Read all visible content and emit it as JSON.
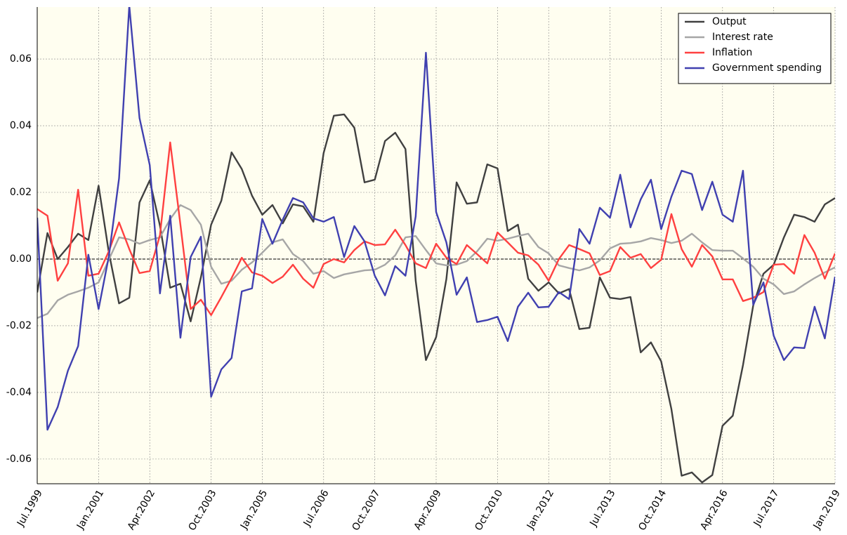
{
  "chart_data": {
    "type": "line",
    "categories": [
      "Jul.1999",
      null,
      null,
      null,
      null,
      null,
      "Jan.2001",
      null,
      null,
      null,
      null,
      "Apr.2002",
      null,
      null,
      null,
      null,
      null,
      "Oct.2003",
      null,
      null,
      null,
      null,
      "Jan.2005",
      null,
      null,
      null,
      null,
      null,
      "Jul.2006",
      null,
      null,
      null,
      null,
      "Oct.2007",
      null,
      null,
      null,
      null,
      null,
      "Apr.2009",
      null,
      null,
      null,
      null,
      null,
      "Oct.2010",
      null,
      null,
      null,
      null,
      "Jan.2012",
      null,
      null,
      null,
      null,
      null,
      "Jul.2013",
      null,
      null,
      null,
      null,
      "Oct.2014",
      null,
      null,
      null,
      null,
      null,
      "Apr.2016",
      null,
      null,
      null,
      null,
      "Jul.2017",
      null,
      null,
      null,
      null,
      null,
      "Jan.2019"
    ],
    "series": [
      {
        "name": "Output",
        "color": "#404040",
        "values": [
          -0.01,
          0.0078,
          0.0,
          0.0036,
          0.0076,
          0.0057,
          0.022,
          0.002,
          -0.0133,
          -0.0116,
          0.017,
          0.0236,
          0.01,
          -0.0086,
          -0.0074,
          -0.0187,
          -0.0055,
          0.0103,
          0.0175,
          0.032,
          0.027,
          0.019,
          0.0133,
          0.0162,
          0.0107,
          0.0164,
          0.0158,
          0.0112,
          0.0318,
          0.043,
          0.0434,
          0.0394,
          0.023,
          0.0238,
          0.0354,
          0.0379,
          0.033,
          -0.0065,
          -0.0303,
          -0.0234,
          -0.006,
          0.023,
          0.0166,
          0.017,
          0.0284,
          0.0272,
          0.0084,
          0.0103,
          -0.0059,
          -0.0095,
          -0.007,
          -0.0103,
          -0.009,
          -0.021,
          -0.0206,
          -0.0055,
          -0.0116,
          -0.012,
          -0.0114,
          -0.028,
          -0.025,
          -0.0307,
          -0.045,
          -0.065,
          -0.064,
          -0.067,
          -0.0648,
          -0.05,
          -0.047,
          -0.0318,
          -0.0139,
          -0.0044,
          -0.0017,
          0.0065,
          0.0133,
          0.0126,
          0.0112,
          0.0164,
          0.0183
        ]
      },
      {
        "name": "Interest rate",
        "color": "#a6a6a6",
        "values": [
          -0.0177,
          -0.0164,
          -0.0124,
          -0.0107,
          -0.0097,
          -0.0086,
          -0.007,
          -0.0002,
          0.0065,
          0.0059,
          0.0046,
          0.0057,
          0.0065,
          0.012,
          0.0162,
          0.0147,
          0.0103,
          -0.0023,
          -0.0074,
          -0.0065,
          -0.0032,
          -0.001,
          0.0019,
          0.005,
          0.0059,
          0.0015,
          -0.0006,
          -0.0044,
          -0.0036,
          -0.0057,
          -0.0046,
          -0.004,
          -0.0034,
          -0.0032,
          -0.0017,
          0.0011,
          0.0065,
          0.0069,
          0.0027,
          -0.0013,
          -0.0019,
          -0.0017,
          -0.0006,
          0.0023,
          0.0061,
          0.0055,
          0.0061,
          0.0069,
          0.0076,
          0.0036,
          0.0017,
          -0.0019,
          -0.0027,
          -0.0034,
          -0.0025,
          -0.0004,
          0.0032,
          0.0046,
          0.0048,
          0.0053,
          0.0063,
          0.0057,
          0.0048,
          0.0055,
          0.0076,
          0.005,
          0.0027,
          0.0025,
          0.0025,
          0.0002,
          -0.0023,
          -0.0059,
          -0.0076,
          -0.0105,
          -0.0097,
          -0.0076,
          -0.0057,
          -0.004,
          -0.0025
        ]
      },
      {
        "name": "Inflation",
        "color": "#ff4040",
        "values": [
          0.015,
          0.013,
          -0.0065,
          -0.0013,
          0.0208,
          -0.005,
          -0.0044,
          0.0023,
          0.011,
          0.003,
          -0.0042,
          -0.0036,
          0.0072,
          0.035,
          0.0103,
          -0.015,
          -0.0122,
          -0.0168,
          -0.0114,
          -0.0057,
          0.0004,
          -0.004,
          -0.005,
          -0.0072,
          -0.0053,
          -0.0017,
          -0.0059,
          -0.0086,
          -0.0015,
          0.0,
          -0.001,
          0.0027,
          0.0053,
          0.0042,
          0.0044,
          0.0088,
          0.0042,
          -0.0013,
          -0.0027,
          0.0046,
          0.0004,
          -0.0015,
          0.0042,
          0.0015,
          -0.0013,
          0.008,
          0.005,
          0.0019,
          0.0011,
          -0.0017,
          -0.0065,
          0.0,
          0.0042,
          0.003,
          0.0017,
          -0.0048,
          -0.0036,
          0.0036,
          0.0004,
          0.0015,
          -0.0027,
          -0.0002,
          0.0135,
          0.003,
          -0.0023,
          0.0042,
          0.0008,
          -0.0061,
          -0.0061,
          -0.0126,
          -0.0116,
          -0.0099,
          -0.0017,
          -0.0015,
          -0.0044,
          0.0072,
          0.0019,
          -0.0059,
          0.0017
        ]
      },
      {
        "name": "Government spending",
        "color": "#4040b0",
        "values": [
          0.0124,
          -0.0512,
          -0.0444,
          -0.0335,
          -0.0261,
          0.0013,
          -0.015,
          0.0008,
          0.0242,
          0.076,
          0.0423,
          0.0282,
          -0.0103,
          0.013,
          -0.0236,
          0.0006,
          0.0067,
          -0.0413,
          -0.0331,
          -0.0297,
          -0.0097,
          -0.0088,
          0.012,
          0.0046,
          0.0118,
          0.0183,
          0.017,
          0.0122,
          0.0112,
          0.0126,
          0.0006,
          0.0099,
          0.0053,
          -0.005,
          -0.0109,
          -0.0021,
          -0.005,
          0.0128,
          0.0619,
          0.0141,
          0.005,
          -0.0107,
          -0.0055,
          -0.0189,
          -0.0183,
          -0.0173,
          -0.0246,
          -0.0143,
          -0.0101,
          -0.0145,
          -0.0143,
          -0.0099,
          -0.012,
          0.009,
          0.0046,
          0.0154,
          0.0124,
          0.0253,
          0.0095,
          0.0179,
          0.0238,
          0.009,
          0.0187,
          0.0265,
          0.0255,
          0.0147,
          0.0232,
          0.0133,
          0.0112,
          0.0265,
          -0.0137,
          -0.007,
          -0.023,
          -0.0303,
          -0.0265,
          -0.0267,
          -0.0143,
          -0.0238,
          -0.0053
        ]
      }
    ],
    "ylim": [
      -0.0674,
      0.0756
    ],
    "yticks": [
      -0.06,
      -0.04,
      -0.02,
      {
        "value": 0,
        "label": "0.00"
      },
      0.02,
      0.04,
      0.06
    ],
    "grid": true,
    "zero_line": true,
    "legend": "upper right",
    "background": "#fffef0"
  }
}
